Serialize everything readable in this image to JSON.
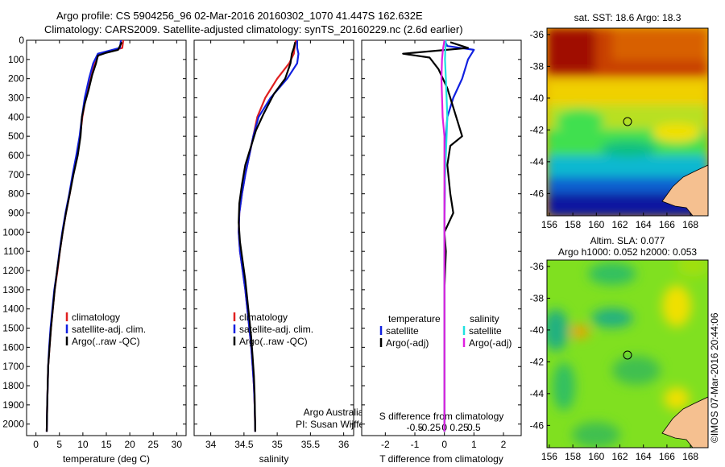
{
  "header": {
    "line1": "Argo profile: CS 5904256_96 02-Mar-2016 20160302_1070 41.447S 162.632E",
    "line2": "Climatology: CARS2009. Satellite-adjusted climatology: synTS_20160229.nc (2.6d earlier)"
  },
  "colors": {
    "climatology": "#e02020",
    "satellite": "#1020e0",
    "argo": "#000000",
    "sal_satellite": "#20e0e0",
    "sal_argo": "#e020e0"
  },
  "chart_data": [
    {
      "type": "line",
      "id": "temperature",
      "xlabel": "temperature (deg C)",
      "xlim": [
        -2,
        32
      ],
      "xticks": [
        "0",
        "5",
        "10",
        "15",
        "20",
        "25",
        "30"
      ],
      "ylim": [
        0,
        2060
      ],
      "yticks": [
        "0",
        "100",
        "200",
        "300",
        "400",
        "500",
        "600",
        "700",
        "800",
        "900",
        "1000",
        "1100",
        "1200",
        "1300",
        "1400",
        "1500",
        "1600",
        "1700",
        "1800",
        "1900",
        "2000"
      ],
      "legend": [
        "climatology",
        "satellite-adj. clim.",
        "Argo(..raw -QC)"
      ],
      "series": [
        {
          "name": "climatology",
          "color": "#e02020",
          "x": [
            18.6,
            18.4,
            13.5,
            12.4,
            11.7,
            10.6,
            9.9,
            9.4,
            8.7,
            7.9,
            7.2,
            6.4,
            5.7,
            5.1,
            4.6,
            4.0,
            3.6,
            3.2,
            2.9,
            2.6,
            2.5,
            2.4,
            2.3
          ],
          "y": [
            0,
            40,
            70,
            120,
            200,
            300,
            400,
            500,
            600,
            700,
            800,
            900,
            1000,
            1100,
            1200,
            1300,
            1400,
            1500,
            1600,
            1700,
            1800,
            1900,
            2040
          ]
        },
        {
          "name": "satellite-adj. clim.",
          "color": "#1020e0",
          "x": [
            18.1,
            17.9,
            13.2,
            12.2,
            11.3,
            10.4,
            9.8,
            9.3,
            8.6,
            7.8,
            7.1,
            6.3,
            5.6,
            5.0,
            4.5,
            3.9,
            3.5,
            3.1,
            2.8,
            2.6,
            2.5,
            2.4,
            2.3
          ],
          "y": [
            0,
            40,
            70,
            120,
            200,
            300,
            400,
            500,
            600,
            700,
            800,
            900,
            1000,
            1100,
            1200,
            1300,
            1400,
            1500,
            1600,
            1700,
            1800,
            1900,
            2040
          ]
        },
        {
          "name": "Argo(..raw -QC)",
          "color": "#000000",
          "x": [
            18.3,
            17.5,
            15.0,
            13.2,
            12.8,
            12.0,
            11.2,
            10.4,
            9.8,
            9.5,
            8.9,
            8.0,
            7.2,
            6.4,
            5.7,
            5.1,
            4.5,
            4.0,
            3.6,
            3.2,
            2.9,
            2.6,
            2.5,
            2.4,
            2.3
          ],
          "y": [
            10,
            50,
            65,
            80,
            120,
            180,
            260,
            330,
            400,
            500,
            600,
            700,
            800,
            900,
            1000,
            1100,
            1200,
            1300,
            1400,
            1500,
            1600,
            1700,
            1800,
            1900,
            2040
          ]
        }
      ]
    },
    {
      "type": "line",
      "id": "salinity",
      "xlabel": "salinity",
      "xlim": [
        33.75,
        36.15
      ],
      "xticks": [
        "34",
        "34.5",
        "35",
        "35.5",
        "36"
      ],
      "ylim": [
        0,
        2060
      ],
      "legend": [
        "climatology",
        "satellite-adj. clim.",
        "Argo(..raw -QC)"
      ],
      "annotation": [
        "Argo Australia",
        "PI: Susan Wijffels"
      ],
      "series": [
        {
          "name": "climatology",
          "color": "#e02020",
          "x": [
            35.28,
            35.26,
            35.25,
            35.18,
            35.0,
            34.82,
            34.7,
            34.64,
            34.58,
            34.52,
            34.47,
            34.43,
            34.42,
            34.44,
            34.48,
            34.52,
            34.55,
            34.58,
            34.61,
            34.63,
            34.65,
            34.66,
            34.67
          ],
          "y": [
            0,
            40,
            70,
            120,
            200,
            300,
            400,
            500,
            600,
            700,
            800,
            900,
            1000,
            1100,
            1200,
            1300,
            1400,
            1500,
            1600,
            1700,
            1800,
            1900,
            2040
          ]
        },
        {
          "name": "satellite-adj. clim.",
          "color": "#1020e0",
          "x": [
            35.3,
            35.3,
            35.32,
            35.3,
            35.15,
            34.9,
            34.72,
            34.64,
            34.58,
            34.52,
            34.47,
            34.43,
            34.42,
            34.44,
            34.48,
            34.52,
            34.55,
            34.58,
            34.61,
            34.63,
            34.65,
            34.66,
            34.67
          ],
          "y": [
            0,
            40,
            70,
            120,
            200,
            300,
            400,
            500,
            600,
            700,
            800,
            900,
            1000,
            1100,
            1200,
            1300,
            1400,
            1500,
            1600,
            1700,
            1800,
            1900,
            2040
          ]
        },
        {
          "name": "Argo(..raw -QC)",
          "color": "#000000",
          "x": [
            35.27,
            35.25,
            35.22,
            35.2,
            35.12,
            34.95,
            34.8,
            34.68,
            34.6,
            34.52,
            34.47,
            34.43,
            34.42,
            34.44,
            34.48,
            34.52,
            34.55,
            34.58,
            34.61,
            34.63,
            34.65,
            34.66,
            34.67
          ],
          "y": [
            10,
            40,
            70,
            120,
            200,
            280,
            380,
            470,
            560,
            650,
            750,
            850,
            950,
            1050,
            1150,
            1250,
            1350,
            1450,
            1550,
            1650,
            1750,
            1850,
            2040
          ]
        }
      ]
    },
    {
      "type": "line",
      "id": "differences",
      "xlabel": "T difference from climatology",
      "xlabel_top": "S difference from climatology",
      "xlim": [
        -2.8,
        2.6
      ],
      "xticks": [
        "-2",
        "-1",
        "0",
        "1",
        "2"
      ],
      "xticks_top": [
        "-0.5",
        "-0.25",
        "0",
        "0.25",
        "0.5"
      ],
      "ylim": [
        0,
        2060
      ],
      "legend_left_title": "temperature",
      "legend_right_title": "salinity",
      "legend_left": [
        "satellite",
        "Argo(-adj)"
      ],
      "legend_right": [
        "satellite",
        "Argo(-adj)"
      ],
      "series": [
        {
          "name": "temperature satellite",
          "color": "#1020e0",
          "x": [
            0,
            0.1,
            1.0,
            0.8,
            0.6,
            0.3,
            0.1,
            0.05,
            0.02,
            0,
            0
          ],
          "y": [
            0,
            30,
            50,
            100,
            200,
            300,
            400,
            500,
            700,
            1000,
            2040
          ]
        },
        {
          "name": "temperature Argo(-adj)",
          "color": "#000000",
          "x": [
            0.2,
            0.8,
            -1.4,
            -0.5,
            -0.2,
            0.1,
            0.3,
            0.6,
            0.2,
            0.1,
            0.2,
            0.3,
            0.0,
            0.05,
            0.0,
            0.0
          ],
          "y": [
            10,
            40,
            70,
            90,
            150,
            250,
            350,
            500,
            550,
            650,
            800,
            900,
            1000,
            1100,
            1300,
            2040
          ]
        },
        {
          "name": "salinity satellite",
          "color": "#20e0e0",
          "x": [
            0.05,
            0.03,
            0.02,
            0.05,
            0.1,
            0.05,
            0.0,
            0.0,
            0.0
          ],
          "y": [
            0,
            50,
            100,
            200,
            400,
            600,
            800,
            1200,
            2040
          ]
        },
        {
          "name": "salinity Argo(-adj)",
          "color": "#e020e0",
          "x": [
            0.0,
            -0.05,
            -0.08,
            -0.1,
            -0.06,
            0.0,
            0.0,
            0.0
          ],
          "y": [
            0,
            50,
            100,
            200,
            400,
            500,
            700,
            2040
          ]
        }
      ]
    },
    {
      "type": "heatmap",
      "id": "sst-map",
      "title": "sat. SST: 18.6 Argo: 18.3",
      "xticks": [
        "156",
        "158",
        "160",
        "162",
        "164",
        "166",
        "168"
      ],
      "yticks": [
        "-36",
        "-38",
        "-40",
        "-42",
        "-44",
        "-46"
      ],
      "xlim": [
        155.8,
        169.5
      ],
      "ylim": [
        -47.4,
        -35.6
      ],
      "marker": {
        "lon": 162.632,
        "lat": -41.447
      }
    },
    {
      "type": "heatmap",
      "id": "sla-map",
      "title_line1": "Altim. SLA: 0.077",
      "title_line2": "Argo h1000: 0.052 h2000: 0.053",
      "xticks": [
        "156",
        "158",
        "160",
        "162",
        "164",
        "166",
        "168"
      ],
      "yticks": [
        "-36",
        "-38",
        "-40",
        "-42",
        "-44",
        "-46"
      ],
      "xlim": [
        155.8,
        169.5
      ],
      "ylim": [
        -47.4,
        -35.6
      ],
      "marker": {
        "lon": 162.632,
        "lat": -41.447
      }
    }
  ],
  "stamp": "©IMOS 07-Mar-2016 20:44:06"
}
